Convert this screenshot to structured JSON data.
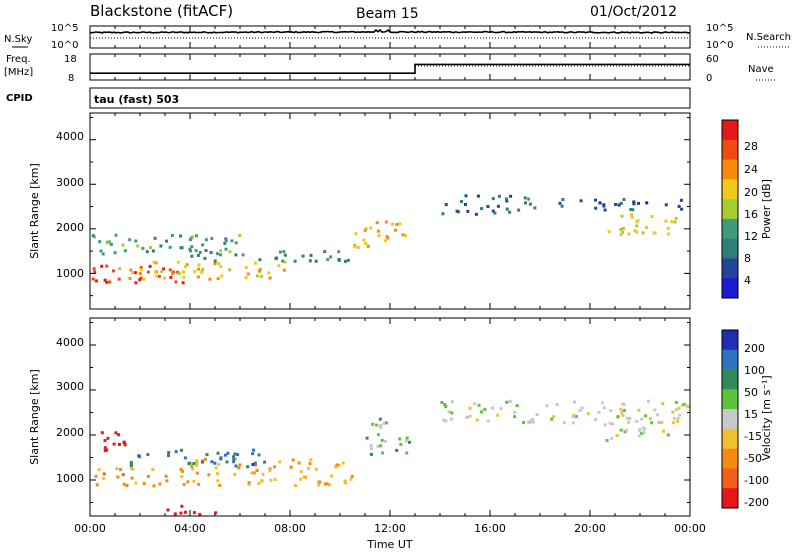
{
  "header": {
    "title": "Blackstone (fitACF)",
    "beam": "Beam 15",
    "date": "01/Oct/2012"
  },
  "noise_panel": {
    "left_label": "N.Sky",
    "right_label": "N.Search",
    "ticks": [
      "10^5",
      "10^0"
    ]
  },
  "freq_panel": {
    "left_label_top": "Freq.",
    "left_label_unit": "[MHz]",
    "right_label": "Nave",
    "left_ticks": [
      "18",
      "8"
    ],
    "right_ticks": [
      "60",
      "0"
    ],
    "cpid_label": "CPID",
    "cpid_value": "tau (fast) 503"
  },
  "x_axis": {
    "label": "Time UT",
    "ticks": [
      "00:00",
      "04:00",
      "08:00",
      "12:00",
      "16:00",
      "20:00",
      "00:00"
    ]
  },
  "power_panel": {
    "ylabel": "Slant Range [km]",
    "yticks": [
      "4000",
      "3000",
      "2000",
      "1000"
    ],
    "colorbar_label": "Power [dB]",
    "colorbar_ticks": [
      "28",
      "24",
      "20",
      "16",
      "12",
      "8",
      "4"
    ],
    "colorbar_colors": [
      "#e41818",
      "#f04a10",
      "#f7890d",
      "#f0c81a",
      "#a6cc2e",
      "#3f9c7a",
      "#2f7e7a",
      "#21449c",
      "#1a1acf"
    ]
  },
  "velocity_panel": {
    "ylabel": "Slant Range [km]",
    "yticks": [
      "4000",
      "3000",
      "2000",
      "1000"
    ],
    "colorbar_label": "Velocity [m s⁻¹]",
    "colorbar_ticks": [
      "200",
      "100",
      "50",
      "15",
      "-15",
      "-50",
      "-100",
      "-200"
    ],
    "colorbar_colors": [
      "#1e2fb4",
      "#2f72c4",
      "#2f8a5a",
      "#5cc43a",
      "#c8c8c8",
      "#f0c030",
      "#f48a14",
      "#f06018",
      "#e41818"
    ]
  },
  "chart_data": [
    {
      "type": "line",
      "title": "N.Sky / N.Search",
      "x": [
        "00:00",
        "12:00",
        "24:00"
      ],
      "series": [
        {
          "name": "N.Sky",
          "values": [
            4.2,
            4.6,
            3.9
          ]
        }
      ],
      "ylim": [
        0,
        5
      ]
    },
    {
      "type": "line",
      "title": "Freq. / Nave",
      "x": [
        "00:00",
        "13:00",
        "13:00",
        "24:00"
      ],
      "series": [
        {
          "name": "Freq. [MHz]",
          "values": [
            10.2,
            10.2,
            14.2,
            14.2
          ]
        }
      ],
      "ylim": [
        8,
        18
      ]
    },
    {
      "type": "heatmap",
      "title": "Power [dB]",
      "xlabel": "Time UT",
      "ylabel": "Slant Range [km]",
      "xlim": [
        0,
        24
      ],
      "ylim": [
        200,
        4600
      ],
      "zlim": [
        0,
        32
      ],
      "bands": [
        {
          "t0": 0.0,
          "t1": 4.0,
          "r0": 800,
          "r1": 1200,
          "value": 28
        },
        {
          "t0": 1.0,
          "t1": 8.0,
          "r0": 900,
          "r1": 1300,
          "value": 20
        },
        {
          "t0": 0.0,
          "t1": 6.0,
          "r0": 1400,
          "r1": 1900,
          "value": 12
        },
        {
          "t0": 4.0,
          "t1": 11.0,
          "r0": 1300,
          "r1": 1550,
          "value": 10
        },
        {
          "t0": 10.5,
          "t1": 12.8,
          "r0": 1600,
          "r1": 2200,
          "value": 22
        },
        {
          "t0": 14.0,
          "t1": 17.5,
          "r0": 2350,
          "r1": 2800,
          "value": 8
        },
        {
          "t0": 17.5,
          "t1": 24.0,
          "r0": 2450,
          "r1": 2700,
          "value": 6
        },
        {
          "t0": 20.5,
          "t1": 23.5,
          "r0": 1900,
          "r1": 2400,
          "value": 18
        }
      ]
    },
    {
      "type": "heatmap",
      "title": "Velocity [m s⁻¹]",
      "xlabel": "Time UT",
      "ylabel": "Slant Range [km]",
      "xlim": [
        0,
        24
      ],
      "ylim": [
        200,
        4600
      ],
      "zlim": [
        -200,
        200
      ],
      "bands": [
        {
          "t0": 0.0,
          "t1": 1.5,
          "r0": 1600,
          "r1": 2100,
          "value": -200
        },
        {
          "t0": 0.0,
          "t1": 4.0,
          "r0": 900,
          "r1": 1300,
          "value": -80
        },
        {
          "t0": 4.0,
          "t1": 10.5,
          "r0": 900,
          "r1": 1500,
          "value": -60
        },
        {
          "t0": 1.5,
          "t1": 7.0,
          "r0": 1300,
          "r1": 1700,
          "value": 120
        },
        {
          "t0": 11.0,
          "t1": 12.8,
          "r0": 1600,
          "r1": 2400,
          "value": 40
        },
        {
          "t0": 14.0,
          "t1": 24.0,
          "r0": 2300,
          "r1": 2800,
          "value": 0
        },
        {
          "t0": 20.5,
          "t1": 23.5,
          "r0": 1900,
          "r1": 2400,
          "value": 0
        },
        {
          "t0": 2.5,
          "t1": 5.0,
          "r0": 250,
          "r1": 450,
          "value": -200
        }
      ]
    }
  ]
}
